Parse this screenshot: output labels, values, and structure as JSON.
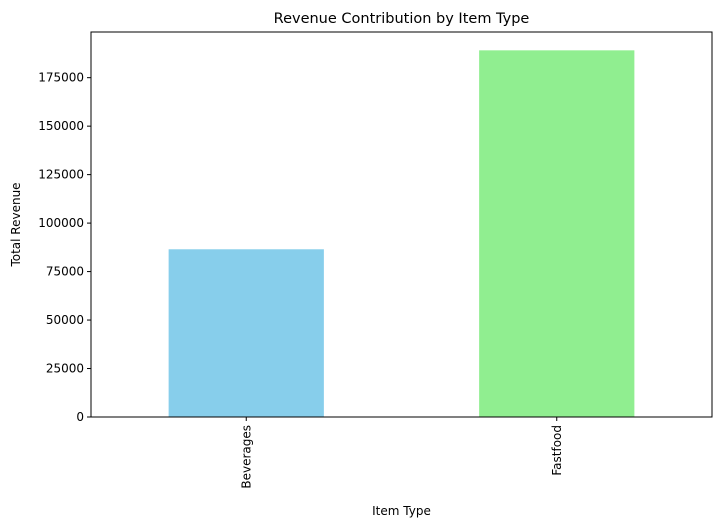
{
  "chart_data": {
    "type": "bar",
    "title": "Revenue Contribution by Item Type",
    "xlabel": "Item Type",
    "ylabel": "Total Revenue",
    "categories": [
      "Beverages",
      "Fastfood"
    ],
    "values": [
      86500,
      189100
    ],
    "colors": [
      "#87ceeb",
      "#90ee90"
    ],
    "ylim": [
      0,
      198555
    ],
    "yticks": [
      0,
      25000,
      50000,
      75000,
      100000,
      125000,
      150000,
      175000
    ],
    "grid": false
  }
}
